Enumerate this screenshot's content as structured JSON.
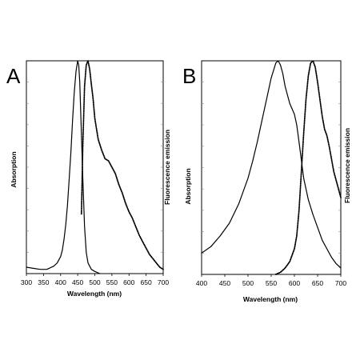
{
  "chart_data": [
    {
      "type": "line",
      "panel_label": "A",
      "xlabel": "Wavelength (nm)",
      "ylabel_left": "Absorption",
      "ylabel_right": "Fluorescence emission",
      "xlim": [
        300,
        700
      ],
      "xticks": [
        300,
        350,
        400,
        450,
        500,
        550,
        600,
        650,
        700
      ],
      "y_units": "normalized (no numeric tick labels)",
      "ylim": [
        0,
        1
      ],
      "series": [
        {
          "style": "solid",
          "x": [
            300,
            320,
            340,
            360,
            380,
            390,
            400,
            405,
            410,
            415,
            420,
            425,
            430,
            435,
            440,
            445,
            450,
            453,
            456,
            460,
            465,
            470,
            475,
            480,
            490,
            500,
            515
          ],
          "y": [
            0.03,
            0.025,
            0.02,
            0.02,
            0.035,
            0.05,
            0.08,
            0.11,
            0.16,
            0.23,
            0.32,
            0.44,
            0.57,
            0.72,
            0.85,
            0.95,
            1.0,
            0.98,
            0.9,
            0.7,
            0.45,
            0.22,
            0.1,
            0.05,
            0.02,
            0.01,
            0.0
          ]
        },
        {
          "style": "dotted",
          "x": [
            461,
            465,
            470,
            475,
            480,
            485,
            490,
            495,
            500,
            510,
            520,
            530,
            540,
            550,
            560,
            570,
            580,
            590,
            600,
            610,
            620,
            630,
            640,
            650,
            660,
            670,
            680,
            690,
            700
          ],
          "y": [
            0.28,
            0.6,
            0.88,
            0.98,
            1.0,
            0.96,
            0.89,
            0.82,
            0.73,
            0.63,
            0.58,
            0.54,
            0.53,
            0.5,
            0.47,
            0.42,
            0.38,
            0.33,
            0.29,
            0.26,
            0.22,
            0.18,
            0.15,
            0.12,
            0.09,
            0.07,
            0.05,
            0.03,
            0.02
          ]
        }
      ]
    },
    {
      "type": "line",
      "panel_label": "B",
      "xlabel": "Wavelength (nm)",
      "ylabel_left": "Absorption",
      "ylabel_right": "Fluorescence emission",
      "xlim": [
        400,
        700
      ],
      "xticks": [
        400,
        450,
        500,
        550,
        600,
        650,
        700
      ],
      "y_units": "normalized (no numeric tick labels)",
      "ylim": [
        0,
        1
      ],
      "series": [
        {
          "style": "solid",
          "x": [
            400,
            420,
            440,
            460,
            480,
            500,
            510,
            520,
            530,
            540,
            550,
            560,
            565,
            570,
            575,
            580,
            590,
            600,
            605,
            610,
            620,
            630,
            640,
            650,
            660,
            670,
            680,
            690,
            700
          ],
          "y": [
            0.1,
            0.13,
            0.18,
            0.24,
            0.33,
            0.45,
            0.53,
            0.62,
            0.72,
            0.82,
            0.92,
            0.99,
            1.0,
            0.98,
            0.94,
            0.88,
            0.8,
            0.75,
            0.7,
            0.62,
            0.45,
            0.35,
            0.28,
            0.22,
            0.16,
            0.12,
            0.08,
            0.05,
            0.03
          ]
        },
        {
          "style": "dotted",
          "x": [
            560,
            570,
            580,
            590,
            600,
            605,
            610,
            615,
            620,
            625,
            630,
            635,
            640,
            645,
            650,
            655,
            660,
            665,
            670,
            675,
            680,
            685,
            690,
            695,
            700
          ],
          "y": [
            0.0,
            0.01,
            0.03,
            0.06,
            0.12,
            0.18,
            0.3,
            0.48,
            0.66,
            0.82,
            0.93,
            0.99,
            1.0,
            0.97,
            0.9,
            0.82,
            0.74,
            0.68,
            0.65,
            0.6,
            0.54,
            0.48,
            0.44,
            0.4,
            0.36
          ]
        }
      ]
    }
  ]
}
